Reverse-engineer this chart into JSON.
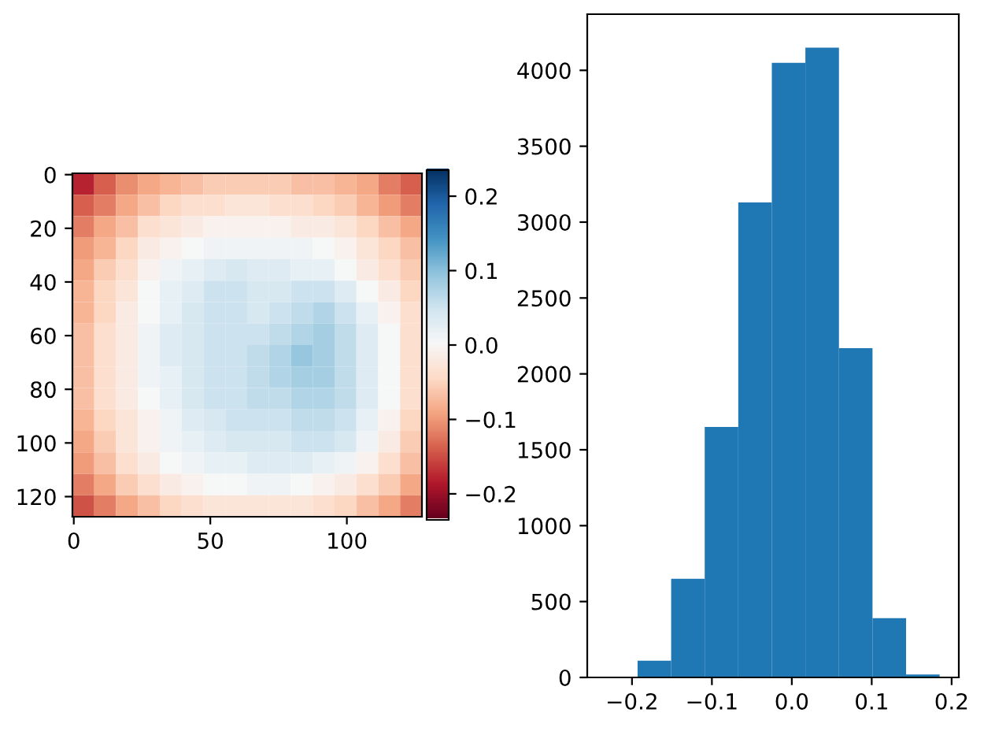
{
  "chart_data": [
    {
      "type": "heatmap",
      "xlim": [
        -0.5,
        127.5
      ],
      "ylim": [
        127.5,
        -0.5
      ],
      "xticks": [
        0,
        50,
        100
      ],
      "yticks": [
        0,
        20,
        40,
        60,
        80,
        100,
        120
      ],
      "clim": [
        -0.235,
        0.235
      ],
      "cticks": [
        -0.2,
        -0.1,
        {
          "value": 0,
          "label": "0.0"
        },
        0.1,
        0.2
      ],
      "cells": [
        [
          -0.18,
          -0.14,
          -0.11,
          -0.09,
          -0.08,
          -0.07,
          -0.06,
          -0.06,
          -0.06,
          -0.06,
          -0.07,
          -0.07,
          -0.08,
          -0.09,
          -0.12,
          -0.14
        ],
        [
          -0.14,
          -0.12,
          -0.09,
          -0.07,
          -0.05,
          -0.04,
          -0.04,
          -0.03,
          -0.03,
          -0.04,
          -0.04,
          -0.05,
          -0.06,
          -0.08,
          -0.1,
          -0.12
        ],
        [
          -0.12,
          -0.09,
          -0.07,
          -0.04,
          -0.03,
          -0.02,
          -0.01,
          -0.01,
          -0.01,
          -0.01,
          -0.02,
          -0.02,
          -0.03,
          -0.05,
          -0.07,
          -0.09
        ],
        [
          -0.1,
          -0.08,
          -0.05,
          -0.02,
          -0.01,
          0.0,
          0.01,
          0.01,
          0.01,
          0.01,
          0.01,
          0.0,
          -0.01,
          -0.03,
          -0.05,
          -0.07
        ],
        [
          -0.09,
          -0.06,
          -0.04,
          -0.01,
          0.01,
          0.02,
          0.03,
          0.04,
          0.03,
          0.03,
          0.02,
          0.02,
          0.0,
          -0.02,
          -0.04,
          -0.06
        ],
        [
          -0.08,
          -0.05,
          -0.03,
          0.0,
          0.02,
          0.03,
          0.05,
          0.05,
          0.04,
          0.04,
          0.05,
          0.05,
          0.03,
          0.0,
          -0.02,
          -0.05
        ],
        [
          -0.08,
          -0.05,
          -0.02,
          0.0,
          0.02,
          0.04,
          0.05,
          0.05,
          0.04,
          0.05,
          0.06,
          0.07,
          0.05,
          0.02,
          -0.01,
          -0.04
        ],
        [
          -0.07,
          -0.04,
          -0.02,
          0.01,
          0.03,
          0.04,
          0.05,
          0.05,
          0.05,
          0.06,
          0.07,
          0.08,
          0.06,
          0.03,
          0.0,
          -0.04
        ],
        [
          -0.07,
          -0.04,
          -0.02,
          0.01,
          0.03,
          0.04,
          0.05,
          0.05,
          0.06,
          0.07,
          0.09,
          0.08,
          0.06,
          0.03,
          0.0,
          -0.04
        ],
        [
          -0.07,
          -0.04,
          -0.02,
          0.01,
          0.02,
          0.04,
          0.05,
          0.05,
          0.06,
          0.07,
          0.08,
          0.08,
          0.06,
          0.03,
          0.0,
          -0.04
        ],
        [
          -0.07,
          -0.04,
          -0.02,
          0.0,
          0.02,
          0.04,
          0.05,
          0.05,
          0.06,
          0.06,
          0.07,
          0.07,
          0.06,
          0.03,
          0.0,
          -0.04
        ],
        [
          -0.08,
          -0.05,
          -0.03,
          -0.01,
          0.01,
          0.03,
          0.04,
          0.05,
          0.05,
          0.05,
          0.06,
          0.06,
          0.05,
          0.02,
          -0.01,
          -0.05
        ],
        [
          -0.09,
          -0.06,
          -0.03,
          -0.01,
          0.01,
          0.02,
          0.03,
          0.04,
          0.04,
          0.04,
          0.05,
          0.05,
          0.04,
          0.01,
          -0.02,
          -0.06
        ],
        [
          -0.1,
          -0.07,
          -0.04,
          -0.02,
          0.0,
          0.01,
          0.02,
          0.02,
          0.03,
          0.03,
          0.03,
          0.02,
          0.01,
          -0.01,
          -0.04,
          -0.07
        ],
        [
          -0.12,
          -0.09,
          -0.06,
          -0.04,
          -0.02,
          -0.01,
          0.0,
          0.0,
          0.01,
          0.01,
          0.0,
          -0.01,
          -0.02,
          -0.04,
          -0.06,
          -0.09
        ],
        [
          -0.15,
          -0.12,
          -0.09,
          -0.07,
          -0.05,
          -0.04,
          -0.03,
          -0.03,
          -0.03,
          -0.03,
          -0.03,
          -0.04,
          -0.05,
          -0.07,
          -0.09,
          -0.12
        ]
      ]
    },
    {
      "type": "histogram",
      "color": "#1f77b4",
      "bins": [
        -0.235,
        -0.193,
        -0.151,
        -0.109,
        -0.067,
        -0.025,
        0.017,
        0.059,
        0.101,
        0.143,
        0.185
      ],
      "values": [
        0,
        110,
        650,
        1650,
        3130,
        4050,
        4150,
        2170,
        390,
        20
      ],
      "xlim": [
        -0.256,
        0.209
      ],
      "ylim": [
        0,
        4370
      ],
      "xticks": [
        -0.2,
        -0.1,
        {
          "value": 0,
          "label": "0.0"
        },
        0.1,
        0.2
      ],
      "yticks": [
        0,
        500,
        1000,
        1500,
        2000,
        2500,
        3000,
        3500,
        4000
      ]
    }
  ]
}
